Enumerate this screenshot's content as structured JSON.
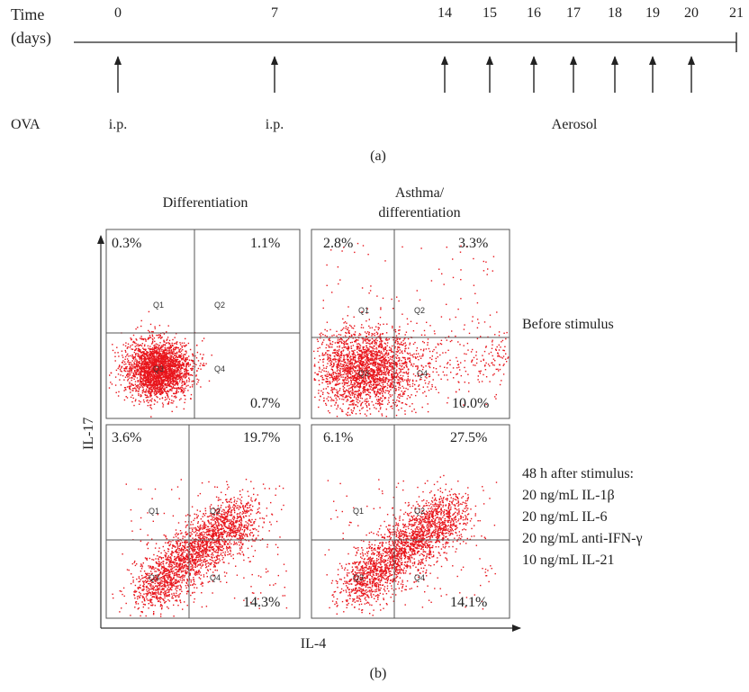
{
  "timeline": {
    "time_label": "Time",
    "days_label": "(days)",
    "ova_label": "OVA",
    "days": [
      "0",
      "7",
      "14",
      "15",
      "16",
      "17",
      "18",
      "19",
      "20",
      "21"
    ],
    "arrow_days": [
      "0",
      "7",
      "14",
      "15",
      "16",
      "17",
      "18",
      "19",
      "20"
    ],
    "ip_label_1": "i.p.",
    "ip_label_2": "i.p.",
    "aerosol_label": "Aerosol",
    "caption": "(a)"
  },
  "flow": {
    "caption": "(b)",
    "col_differentiation": "Differentiation",
    "col_asthma_line1": "Asthma/",
    "col_asthma_line2": "differentiation",
    "y_axis_label": "IL-17",
    "x_axis_label": "IL-4",
    "quadrant_labels": [
      "Q1",
      "Q2",
      "Q3",
      "Q4"
    ],
    "row_before": "Before stimulus",
    "row_after_lines": [
      "48 h after stimulus:",
      "20 ng/mL IL-1β",
      "20 ng/mL IL-6",
      "20 ng/mL anti-IFN-γ",
      "10 ng/mL IL-21"
    ],
    "panels": [
      {
        "id": "diff-before",
        "q1": "0.3%",
        "q2": "1.1%",
        "q4": "0.7%"
      },
      {
        "id": "asthma-before",
        "q1": "2.8%",
        "q2": "3.3%",
        "q4": "10.0%"
      },
      {
        "id": "diff-after",
        "q1": "3.6%",
        "q2": "19.7%",
        "q4": "14.3%"
      },
      {
        "id": "asthma-after",
        "q1": "6.1%",
        "q2": "27.5%",
        "q4": "14.1%"
      }
    ],
    "dot_color": "#e8141b"
  }
}
